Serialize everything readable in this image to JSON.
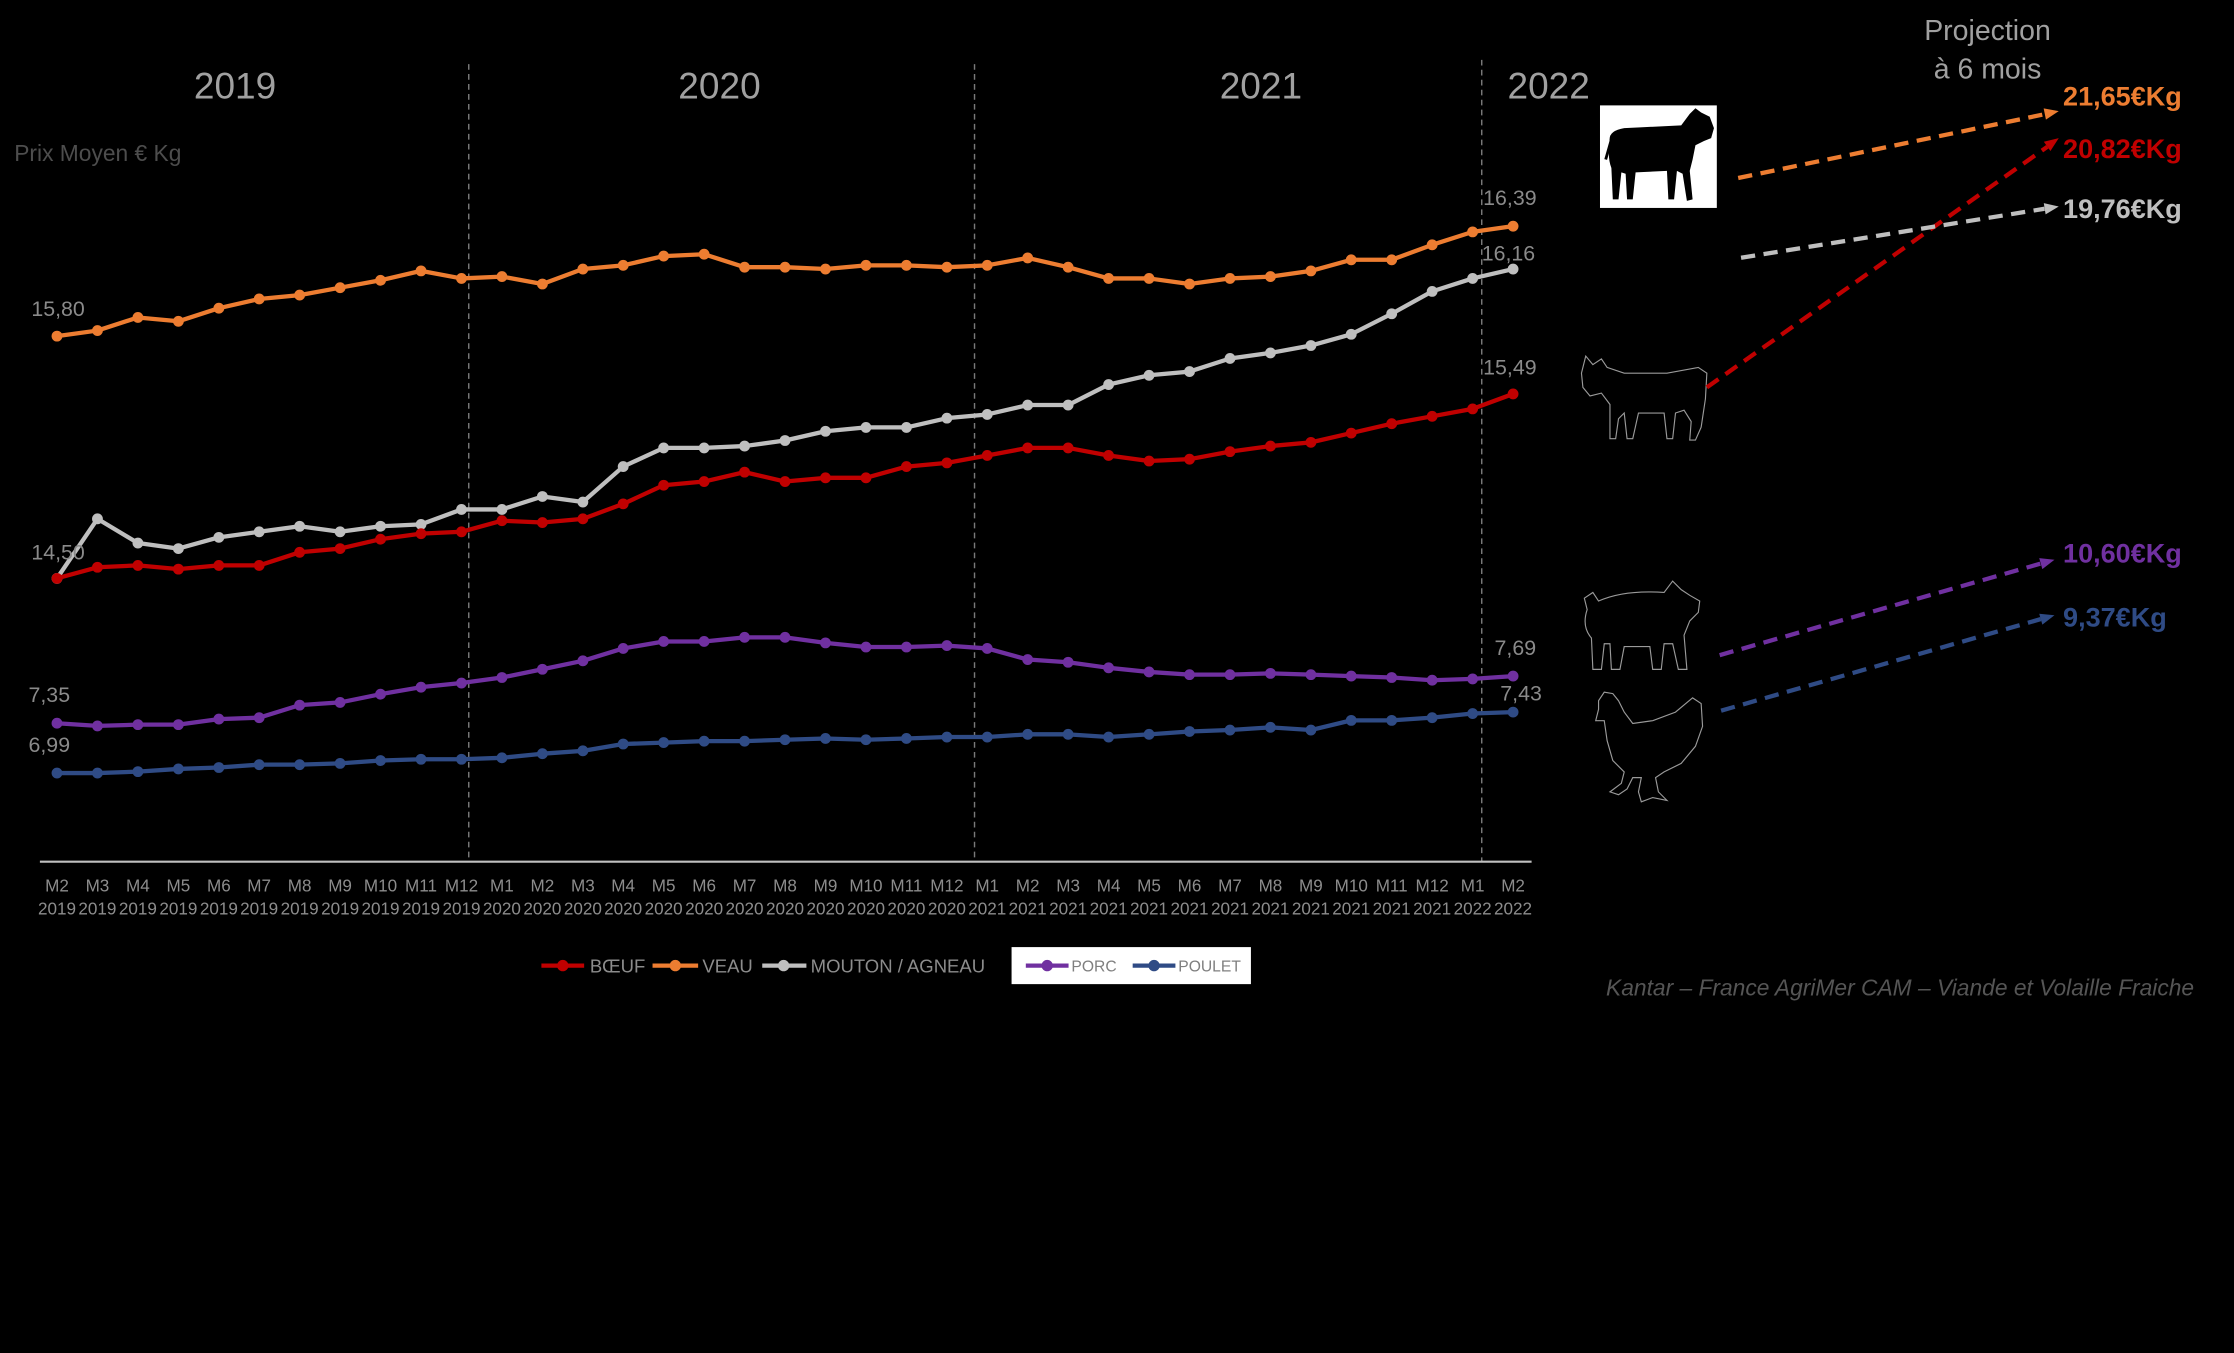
{
  "chart_data": {
    "type": "line",
    "y_axis_label": "Prix Moyen € Kg",
    "period_labels": [
      "2019",
      "2020",
      "2021",
      "2022"
    ],
    "categories": [
      {
        "month": "M2",
        "year": "2019"
      },
      {
        "month": "M3",
        "year": "2019"
      },
      {
        "month": "M4",
        "year": "2019"
      },
      {
        "month": "M5",
        "year": "2019"
      },
      {
        "month": "M6",
        "year": "2019"
      },
      {
        "month": "M7",
        "year": "2019"
      },
      {
        "month": "M8",
        "year": "2019"
      },
      {
        "month": "M9",
        "year": "2019"
      },
      {
        "month": "M10",
        "year": "2019"
      },
      {
        "month": "M11",
        "year": "2019"
      },
      {
        "month": "M12",
        "year": "2019"
      },
      {
        "month": "M1",
        "year": "2020"
      },
      {
        "month": "M2",
        "year": "2020"
      },
      {
        "month": "M3",
        "year": "2020"
      },
      {
        "month": "M4",
        "year": "2020"
      },
      {
        "month": "M5",
        "year": "2020"
      },
      {
        "month": "M6",
        "year": "2020"
      },
      {
        "month": "M7",
        "year": "2020"
      },
      {
        "month": "M8",
        "year": "2020"
      },
      {
        "month": "M9",
        "year": "2020"
      },
      {
        "month": "M10",
        "year": "2020"
      },
      {
        "month": "M11",
        "year": "2020"
      },
      {
        "month": "M12",
        "year": "2020"
      },
      {
        "month": "M1",
        "year": "2021"
      },
      {
        "month": "M2",
        "year": "2021"
      },
      {
        "month": "M3",
        "year": "2021"
      },
      {
        "month": "M4",
        "year": "2021"
      },
      {
        "month": "M5",
        "year": "2021"
      },
      {
        "month": "M6",
        "year": "2021"
      },
      {
        "month": "M7",
        "year": "2021"
      },
      {
        "month": "M8",
        "year": "2021"
      },
      {
        "month": "M9",
        "year": "2021"
      },
      {
        "month": "M10",
        "year": "2021"
      },
      {
        "month": "M11",
        "year": "2021"
      },
      {
        "month": "M12",
        "year": "2021"
      },
      {
        "month": "M1",
        "year": "2022"
      },
      {
        "month": "M2",
        "year": "2022"
      }
    ],
    "ylim": [
      12.98,
      17.26
    ],
    "ylim_secondary": [
      6.35,
      12.11
    ],
    "grid": false,
    "legend_position": "bottom",
    "series": [
      {
        "name": "BŒUF",
        "color": "#C00000",
        "secondary_axis": false,
        "start_label": "14,50",
        "end_label": "15,49",
        "values": [
          14.5,
          14.56,
          14.57,
          14.55,
          14.57,
          14.57,
          14.64,
          14.66,
          14.71,
          14.74,
          14.75,
          14.81,
          14.8,
          14.82,
          14.9,
          15.0,
          15.02,
          15.07,
          15.02,
          15.04,
          15.04,
          15.1,
          15.12,
          15.16,
          15.2,
          15.2,
          15.16,
          15.13,
          15.14,
          15.18,
          15.21,
          15.23,
          15.28,
          15.33,
          15.37,
          15.41,
          15.49
        ]
      },
      {
        "name": "VEAU",
        "color": "#ED7D31",
        "secondary_axis": false,
        "start_label": "15,80",
        "end_label": "16,39",
        "values": [
          15.8,
          15.83,
          15.9,
          15.88,
          15.95,
          16.0,
          16.02,
          16.06,
          16.1,
          16.15,
          16.11,
          16.12,
          16.08,
          16.16,
          16.18,
          16.23,
          16.24,
          16.17,
          16.17,
          16.16,
          16.18,
          16.18,
          16.17,
          16.18,
          16.22,
          16.17,
          16.11,
          16.11,
          16.08,
          16.11,
          16.12,
          16.15,
          16.21,
          16.21,
          16.29,
          16.36,
          16.39
        ]
      },
      {
        "name": "MOUTON / AGNEAU",
        "color": "#BFBFBF",
        "secondary_axis": false,
        "end_label": "16,16",
        "values": [
          14.5,
          14.82,
          14.69,
          14.66,
          14.72,
          14.75,
          14.78,
          14.75,
          14.78,
          14.79,
          14.87,
          14.87,
          14.94,
          14.91,
          15.1,
          15.2,
          15.2,
          15.21,
          15.24,
          15.29,
          15.31,
          15.31,
          15.36,
          15.38,
          15.43,
          15.43,
          15.54,
          15.59,
          15.61,
          15.68,
          15.71,
          15.75,
          15.81,
          15.92,
          16.04,
          16.11,
          16.16
        ]
      },
      {
        "name": "PORC",
        "color": "#7030A0",
        "secondary_axis": true,
        "start_label": "7,35",
        "end_label": "7,69",
        "values": [
          7.35,
          7.33,
          7.34,
          7.34,
          7.38,
          7.39,
          7.48,
          7.5,
          7.56,
          7.61,
          7.64,
          7.68,
          7.74,
          7.8,
          7.89,
          7.94,
          7.94,
          7.97,
          7.97,
          7.93,
          7.9,
          7.9,
          7.91,
          7.89,
          7.81,
          7.79,
          7.75,
          7.72,
          7.7,
          7.7,
          7.71,
          7.7,
          7.69,
          7.68,
          7.66,
          7.67,
          7.69
        ]
      },
      {
        "name": "POULET",
        "color": "#2F4B85",
        "secondary_axis": true,
        "start_label": "6,99",
        "end_label": "7,43",
        "values": [
          6.99,
          6.99,
          7.0,
          7.02,
          7.03,
          7.05,
          7.05,
          7.06,
          7.08,
          7.09,
          7.09,
          7.1,
          7.13,
          7.15,
          7.2,
          7.21,
          7.22,
          7.22,
          7.23,
          7.24,
          7.23,
          7.24,
          7.25,
          7.25,
          7.27,
          7.27,
          7.25,
          7.27,
          7.29,
          7.3,
          7.32,
          7.3,
          7.37,
          7.37,
          7.39,
          7.42,
          7.43
        ]
      }
    ],
    "projection": {
      "title": "Projection",
      "subtitle": "à 6 mois",
      "items": [
        {
          "series_index": 1,
          "label": "21,65€Kg",
          "color": "#ED7D31"
        },
        {
          "series_index": 0,
          "label": "20,82€Kg",
          "color": "#C00000"
        },
        {
          "series_index": 2,
          "label": "19,76€Kg",
          "color": "#BFBFBF"
        },
        {
          "series_index": 3,
          "label": "10,60€Kg",
          "color": "#7030A0"
        },
        {
          "series_index": 4,
          "label": "9,37€Kg",
          "color": "#2F4B85"
        }
      ]
    },
    "source": "Kantar – France AgriMer CAM – Viande et Volaille Fraiche"
  },
  "icons": {
    "calf": "calf-icon",
    "cow": "cow-icon",
    "pig": "pig-icon",
    "chicken": "chicken-icon"
  }
}
